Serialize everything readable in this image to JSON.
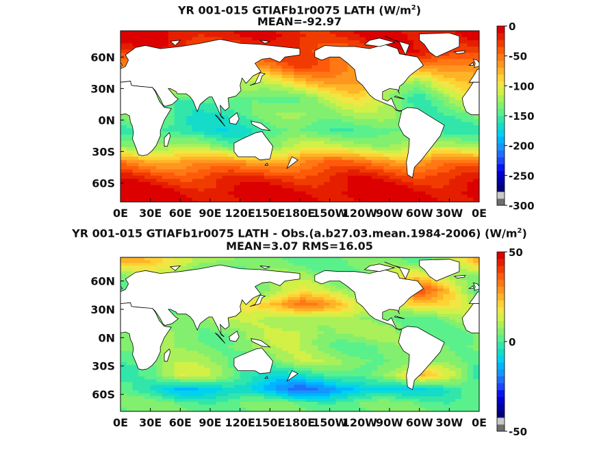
{
  "chart_data": [
    {
      "type": "heatmap",
      "title_prefix": "YR 001-015 GTIAFb1r0075  LATH (W/m",
      "title_exp": "2",
      "title_suffix": ")",
      "subtitle": "MEAN=-92.97",
      "xticks": [
        "0E",
        "30E",
        "60E",
        "90E",
        "120E",
        "150E",
        "180E",
        "150W",
        "120W",
        "90W",
        "60W",
        "30W",
        "0E"
      ],
      "yticks": [
        "60N",
        "30N",
        "0N",
        "30S",
        "60S"
      ],
      "colorbar": {
        "ticks": [
          "0",
          "-50",
          "-100",
          "-150",
          "-200",
          "-250",
          "-300"
        ],
        "range": [
          -300,
          0
        ],
        "colors": [
          "#6e6e6e",
          "#c8c8c8",
          "#00007a",
          "#0000a6",
          "#0000d2",
          "#0a14f0",
          "#1e46ff",
          "#1e6eff",
          "#1496ff",
          "#00b4ff",
          "#00d2f0",
          "#14dcc8",
          "#32e6aa",
          "#5af08c",
          "#82f06e",
          "#aaf05a",
          "#d2f046",
          "#f0e646",
          "#ffd232",
          "#ffb428",
          "#ff961e",
          "#ff7814",
          "#ff5a0a",
          "#f03c00",
          "#e61e00",
          "#dc0000"
        ]
      },
      "field": {
        "lat": [
          80,
          65,
          50,
          35,
          20,
          5,
          -10,
          -25,
          -40,
          -55,
          -70
        ],
        "lon_knots": [
          0,
          60,
          120,
          180,
          240,
          300,
          360
        ],
        "values": [
          [
            -8,
            -10,
            -20,
            -15,
            -20,
            -10,
            -8
          ],
          [
            -25,
            -30,
            -40,
            -35,
            -40,
            -20,
            -25
          ],
          [
            -55,
            -60,
            -70,
            -45,
            -60,
            -90,
            -55
          ],
          [
            -85,
            -100,
            -130,
            -95,
            -75,
            -140,
            -85
          ],
          [
            -115,
            -150,
            -165,
            -140,
            -110,
            -160,
            -115
          ],
          [
            -145,
            -165,
            -170,
            -130,
            -135,
            -155,
            -145
          ],
          [
            -160,
            -180,
            -175,
            -160,
            -150,
            -170,
            -160
          ],
          [
            -125,
            -140,
            -150,
            -130,
            -120,
            -140,
            -125
          ],
          [
            -60,
            -70,
            -75,
            -60,
            -55,
            -65,
            -60
          ],
          [
            -25,
            -30,
            -30,
            -25,
            -20,
            -25,
            -25
          ],
          [
            -5,
            -8,
            -8,
            -5,
            -5,
            -5,
            -5
          ]
        ]
      }
    },
    {
      "type": "heatmap",
      "title_prefix": "YR 001-015 GTIAFb1r0075 LATH - Obs.(a.b27.03.mean.1984-2006) (W/m",
      "title_exp": "2",
      "title_suffix": ")",
      "subtitle": "MEAN=3.07 RMS=16.05",
      "xticks": [
        "0E",
        "30E",
        "60E",
        "90E",
        "120E",
        "150E",
        "180E",
        "150W",
        "120W",
        "90W",
        "60W",
        "30W",
        "0E"
      ],
      "yticks": [
        "60N",
        "30N",
        "0N",
        "30S",
        "60S"
      ],
      "colorbar": {
        "ticks": [
          "50",
          "0",
          "-50"
        ],
        "range": [
          -50,
          50
        ],
        "colors": [
          "#6e6e6e",
          "#c8c8c8",
          "#00007a",
          "#0000a6",
          "#0000d2",
          "#0a14f0",
          "#1e46ff",
          "#1e6eff",
          "#1496ff",
          "#00b4ff",
          "#00d2f0",
          "#14dcc8",
          "#32e6aa",
          "#5af08c",
          "#82f06e",
          "#aaf05a",
          "#d2f046",
          "#f0e646",
          "#ffd232",
          "#ffb428",
          "#ff961e",
          "#ff7814",
          "#ff5a0a",
          "#f03c00",
          "#e61e00",
          "#dc0000"
        ]
      },
      "field": {
        "lat": [
          80,
          65,
          50,
          35,
          20,
          5,
          -10,
          -25,
          -40,
          -55,
          -70
        ],
        "lon_knots": [
          0,
          60,
          120,
          180,
          240,
          300,
          360
        ],
        "values": [
          [
            20,
            15,
            0,
            0,
            0,
            0,
            20
          ],
          [
            5,
            0,
            -5,
            5,
            0,
            15,
            5
          ],
          [
            0,
            0,
            0,
            10,
            5,
            35,
            0
          ],
          [
            5,
            0,
            15,
            35,
            10,
            20,
            5
          ],
          [
            5,
            5,
            5,
            10,
            0,
            0,
            5
          ],
          [
            0,
            5,
            0,
            10,
            5,
            0,
            0
          ],
          [
            5,
            0,
            5,
            5,
            0,
            0,
            5
          ],
          [
            0,
            5,
            0,
            5,
            5,
            0,
            0
          ],
          [
            -10,
            15,
            -5,
            -10,
            -5,
            25,
            -10
          ],
          [
            -5,
            -15,
            -15,
            -25,
            -20,
            -10,
            -5
          ],
          [
            0,
            0,
            0,
            0,
            0,
            0,
            0
          ]
        ]
      }
    }
  ]
}
